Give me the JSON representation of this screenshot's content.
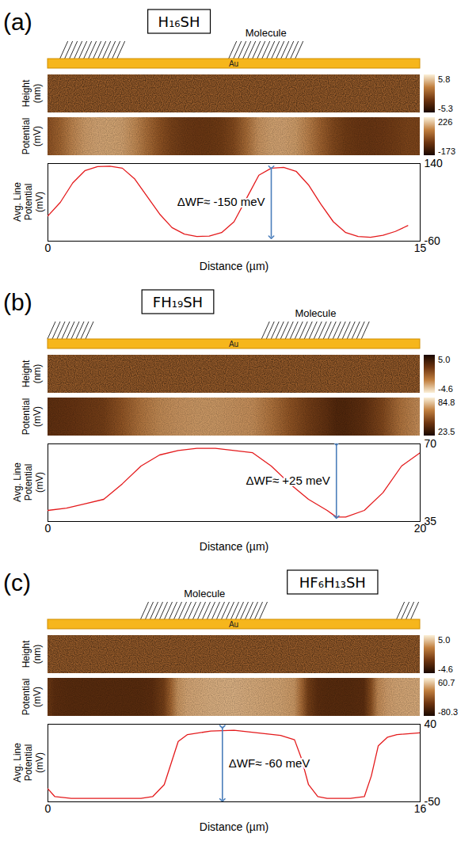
{
  "chart_data": [
    {
      "type": "line",
      "panel": "(a)",
      "title": "H₁₆SH",
      "substrate": "Au",
      "molecule_regions": [
        {
          "from": 0.5,
          "to": 3.3
        },
        {
          "from": 7.3,
          "to": 10.3,
          "label": "Molecule"
        }
      ],
      "height_label": [
        "Height",
        "(nm)"
      ],
      "potential_label": [
        "Potential",
        "(mV)"
      ],
      "y_label": [
        "Avg. Line",
        "Potential",
        "(mV)"
      ],
      "x_label": "Distance (µm)",
      "height_colorbar": {
        "range": [
          -5.3,
          5.8
        ],
        "ticks": [
          -5.3,
          5.8
        ],
        "colors": [
          "#1a0800",
          "#6e3510",
          "#c07e3e",
          "#fbf0d8"
        ]
      },
      "potential_colorbar": {
        "range": [
          -173,
          226
        ],
        "ticks": [
          -173,
          226
        ],
        "colors": [
          "#1a0800",
          "#6e3510",
          "#c07e3e",
          "#fbf0d8"
        ]
      },
      "x": [
        0,
        0.5,
        1,
        1.5,
        2,
        2.5,
        3,
        3.5,
        4,
        4.5,
        5,
        5.5,
        6,
        6.5,
        7,
        7.5,
        8,
        8.5,
        9,
        9.5,
        10,
        10.5,
        11,
        11.5,
        12,
        12.5,
        13,
        13.5,
        14,
        14.5
      ],
      "values": [
        5,
        40,
        90,
        122,
        132,
        133,
        128,
        100,
        55,
        10,
        -25,
        -42,
        -48,
        -47,
        -38,
        -10,
        50,
        110,
        128,
        130,
        120,
        85,
        35,
        -10,
        -38,
        -48,
        -50,
        -45,
        -35,
        -20
      ],
      "color": "#e41a1c",
      "xlim": [
        0,
        15
      ],
      "xticks": [
        0,
        15
      ],
      "ylim": [
        -60,
        140
      ],
      "yticks": [
        -60,
        140
      ],
      "annotation": {
        "text": "ΔWF≈ -150 meV",
        "x": 9,
        "y_from": 130,
        "y_to": -50,
        "color": "#4a7ebb"
      }
    },
    {
      "type": "line",
      "panel": "(b)",
      "title": "FH₁₉SH",
      "substrate": "Au",
      "molecule_regions": [
        {
          "from": 0,
          "to": 2.5
        },
        {
          "from": 11.5,
          "to": 17.3,
          "label": "Molecule"
        }
      ],
      "height_label": [
        "Height",
        "(nm)"
      ],
      "potential_label": [
        "Potential",
        "(mV)"
      ],
      "y_label": [
        "Avg. Line",
        "Potential",
        "(mV)"
      ],
      "x_label": "Distance (µm)",
      "height_colorbar": {
        "range": [
          -4.6,
          5
        ],
        "ticks": [
          -4.6,
          {
            "value": 5,
            "label": "5.0"
          }
        ],
        "colors": [
          "#fbf0d8",
          "#c07e3e",
          "#6e3510",
          "#1a0800"
        ]
      },
      "potential_colorbar": {
        "range": [
          23.5,
          84.8
        ],
        "ticks": [
          23.5,
          84.8
        ],
        "colors": [
          "#1a0800",
          "#6e3510",
          "#c07e3e",
          "#fbf0d8"
        ]
      },
      "x": [
        0,
        1,
        2,
        3,
        4,
        5,
        6,
        7,
        8,
        9,
        10,
        11,
        12,
        13,
        14,
        15,
        15.5,
        16,
        17,
        18,
        19,
        20
      ],
      "values": [
        40,
        41,
        43,
        45,
        52,
        60,
        65,
        67,
        68,
        68,
        67,
        66,
        60,
        52,
        45,
        40,
        37,
        37,
        40,
        48,
        60,
        66
      ],
      "color": "#e41a1c",
      "xlim": [
        0,
        20
      ],
      "xticks": [
        0,
        20
      ],
      "ylim": [
        35,
        70
      ],
      "yticks": [
        35,
        70
      ],
      "annotation": {
        "text": "ΔWF≈ +25 meV",
        "x": 15.5,
        "y_from": 70,
        "y_to": 37,
        "color": "#4a7ebb"
      }
    },
    {
      "type": "line",
      "panel": "(c)",
      "title": "HF₆H₁₃SH",
      "substrate": "Au",
      "molecule_regions": [
        {
          "from": 4,
          "to": 9.5,
          "label": "Molecule"
        },
        {
          "from": 15,
          "to": 16
        }
      ],
      "height_label": [
        "Height",
        "(nm)"
      ],
      "potential_label": [
        "Potential",
        "(mV)"
      ],
      "y_label": [
        "Avg. Line",
        "Potential",
        "(mV)"
      ],
      "x_label": "Distance (µm)",
      "height_colorbar": {
        "range": [
          -4.6,
          5
        ],
        "ticks": [
          -4.6,
          {
            "value": 5,
            "label": "5.0"
          }
        ],
        "colors": [
          "#1a0800",
          "#6e3510",
          "#c07e3e",
          "#fbf0d8"
        ]
      },
      "potential_colorbar": {
        "range": [
          -80.3,
          60.7
        ],
        "ticks": [
          -80.3,
          60.7
        ],
        "colors": [
          "#1a0800",
          "#6e3510",
          "#c07e3e",
          "#fbf0d8"
        ]
      },
      "x": [
        0,
        0.3,
        1,
        2,
        3,
        4,
        4.5,
        5,
        5.3,
        5.6,
        6,
        7,
        8,
        9,
        10,
        10.6,
        10.9,
        11.2,
        11.6,
        12,
        13,
        13.6,
        13.9,
        14.2,
        14.6,
        15,
        16
      ],
      "values": [
        -35,
        -44,
        -46,
        -46,
        -46,
        -46,
        -44,
        -30,
        -5,
        20,
        28,
        32,
        33,
        30,
        27,
        22,
        0,
        -30,
        -44,
        -46,
        -46,
        -44,
        -20,
        15,
        25,
        28,
        30
      ],
      "color": "#e41a1c",
      "xlim": [
        0,
        16
      ],
      "xticks": [
        0,
        16
      ],
      "ylim": [
        -50,
        40
      ],
      "yticks": [
        -50,
        40
      ],
      "annotation": {
        "text": "ΔWF≈ -60 meV",
        "x": 7.5,
        "y_from": 37,
        "y_to": -48,
        "color": "#4a7ebb"
      }
    }
  ]
}
